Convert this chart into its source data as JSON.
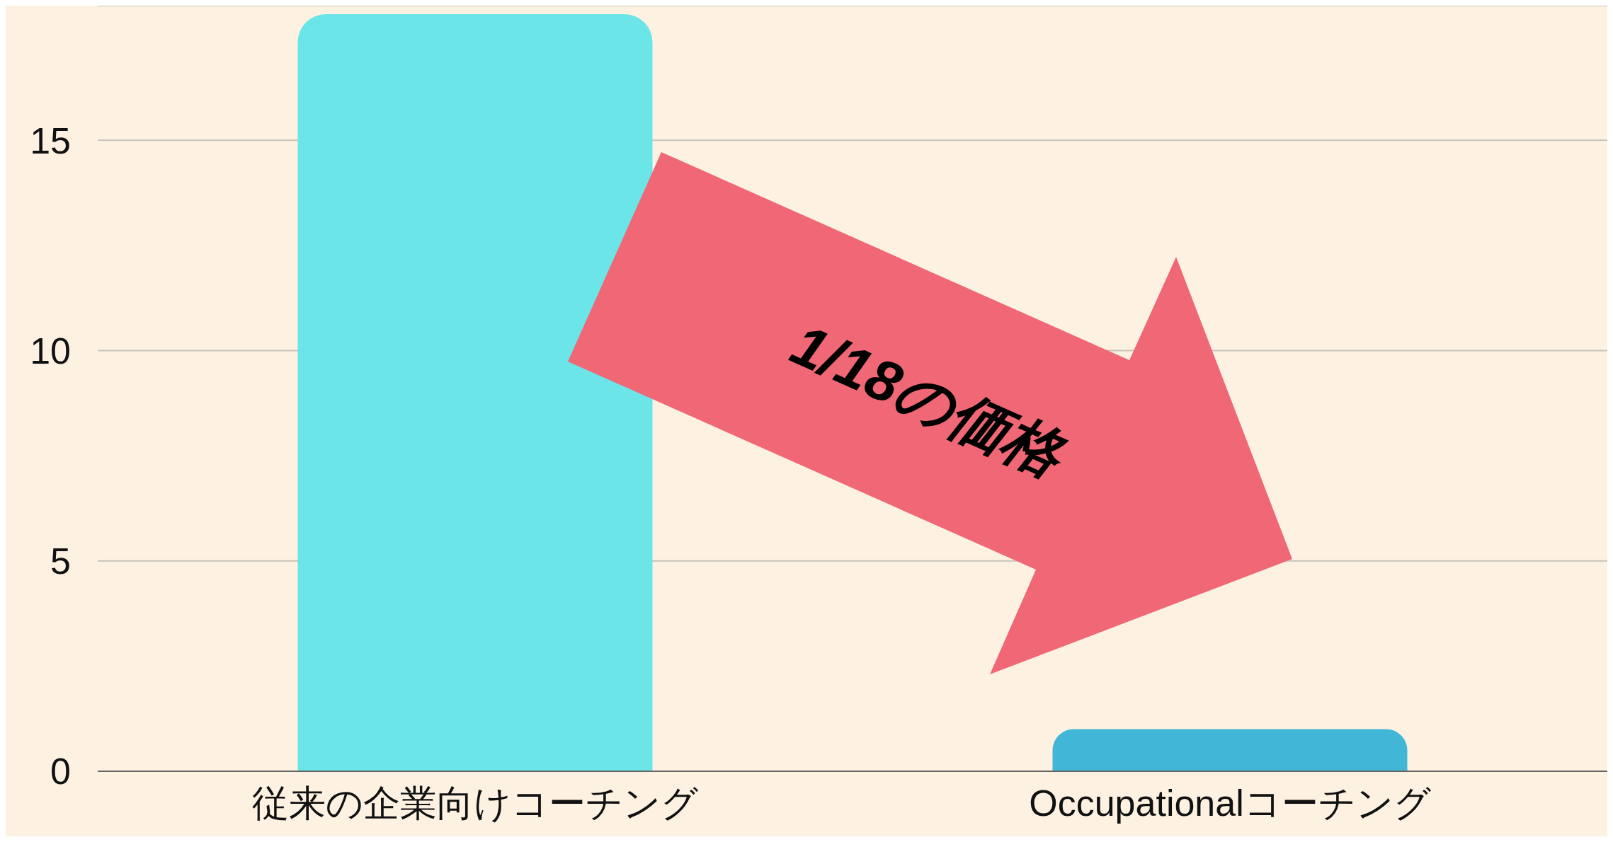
{
  "chart_data": {
    "type": "bar",
    "categories": [
      "従来の企業向けコーチング",
      "Occupationalコーチング"
    ],
    "values": [
      18,
      1
    ],
    "colors": [
      "#6ce5e8",
      "#42b6d6"
    ],
    "ylim": [
      0,
      18.2
    ],
    "yticks": [
      0,
      5,
      10,
      15
    ],
    "grid": "y",
    "annotations": [
      "1/18の価格"
    ]
  }
}
